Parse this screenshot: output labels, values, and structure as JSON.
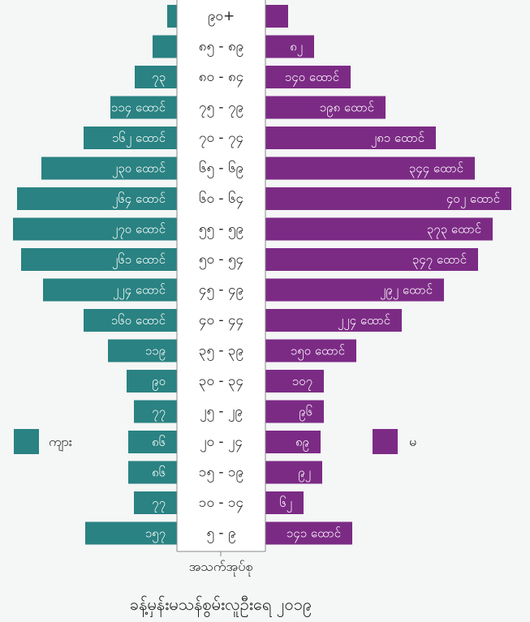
{
  "chart_data": {
    "type": "bar",
    "title": "ခန့်မှန်းမသန်စွမ်းလူဦးရေ ၂၀၁၉",
    "xlabel": "အသက်အုပ်စု",
    "categories": [
      "၉၀+",
      "၈၅ - ၈၉",
      "၈၀ - ၈၄",
      "၇၅ - ၇၉",
      "၇၀ - ၇၄",
      "၆၅ - ၆၉",
      "၆၀ - ၆၄",
      "၅၅ - ၅၉",
      "၅၀ - ၅၄",
      "၄၅ - ၄၉",
      "၄၀ - ၄၄",
      "၃၅ - ၃၉",
      "၃၀ - ၃၄",
      "၂၅ - ၂၉",
      "၂၀ - ၂၄",
      "၁၅ - ၁၉",
      "၁၀ - ၁၄",
      "၅ - ၉"
    ],
    "series": [
      {
        "name": "ကျား",
        "color": "#2a8282",
        "values": [
          12,
          30,
          52,
          82,
          115,
          167,
          197,
          202,
          192,
          165,
          115,
          85,
          62,
          53,
          60,
          60,
          53,
          113
        ],
        "labels": [
          "",
          "",
          "၇၃",
          "၁၁၄ ထောင်",
          "၁၆၂ ထောင်",
          "၂၃၀ ထောင်",
          "၂၆၄ ထောင်",
          "၂၇၀ ထောင်",
          "၂၆၁ ထောင်",
          "၂၂၄ ထောင်",
          "၁၆၀ ထောင်",
          "၁၁၉",
          "၉၀",
          "၇၇",
          "၈၆",
          "၈၆",
          "၇၇",
          "၁၅၇"
        ]
      },
      {
        "name": "မ",
        "color": "#7c2b85",
        "values": [
          28,
          60,
          105,
          148,
          210,
          258,
          303,
          280,
          262,
          220,
          168,
          112,
          72,
          72,
          68,
          70,
          47,
          107
        ],
        "labels": [
          "",
          "၈၂",
          "၁၄၀ ထောင်",
          "၁၉၈ ထောင်",
          "၂၈၁ ထောင်",
          "၃၄၄ ထောင်",
          "၄၀၂ ထောင်",
          "၃၇၃ ထောင်",
          "၃၄၇ ထောင်",
          "၂၉၂ ထောင်",
          "၂၂၄ ထောင်",
          "၁၅၀ ထောင်",
          "၁၀၇",
          "၉၆",
          "၈၉",
          "၉၂",
          "၆၂",
          "၁၄၁ ထောင်"
        ]
      }
    ],
    "legend": [
      "left",
      "right"
    ]
  }
}
